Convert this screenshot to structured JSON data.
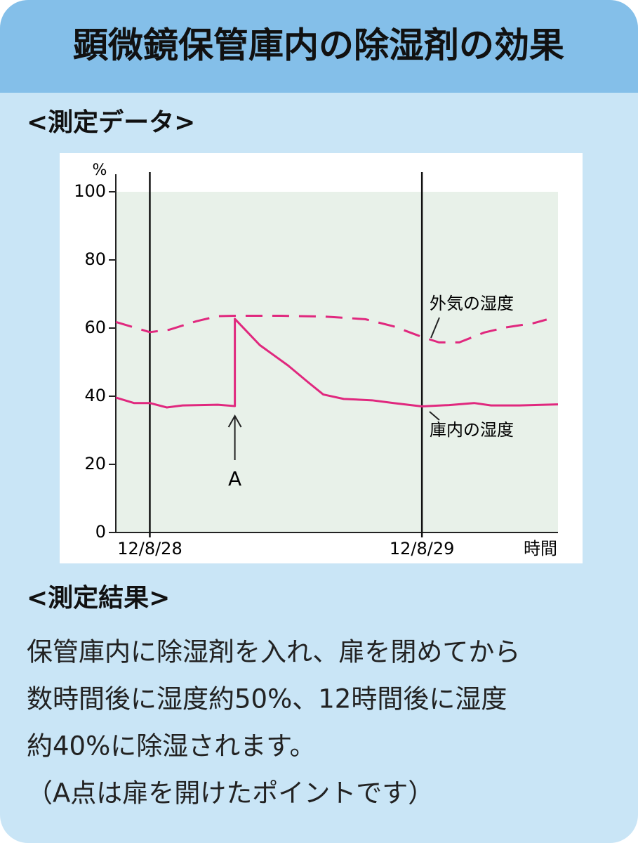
{
  "header": {
    "title": "顕微鏡保管庫内の除湿剤の効果"
  },
  "section_data": {
    "heading": "<測定データ>"
  },
  "chart_data": {
    "type": "line",
    "y_label": "%",
    "x_label": "時間",
    "xlim": [
      -3,
      36
    ],
    "xticks": [
      {
        "value": 0,
        "label": "12/8/28"
      },
      {
        "value": 24,
        "label": "12/8/29"
      }
    ],
    "ylim": [
      0,
      100
    ],
    "yticks": [
      0,
      20,
      40,
      60,
      80,
      100
    ],
    "series": [
      {
        "name": "庫内の湿度",
        "color": "#e0287e",
        "style": "solid",
        "x": [
          -3,
          -1.4,
          0,
          1.5,
          2.9,
          6,
          7.5,
          7.5,
          9.7,
          12.2,
          14,
          15.3,
          17.1,
          19.6,
          21.5,
          24,
          26.4,
          28.6,
          30.1,
          32.6,
          36
        ],
        "values": [
          39.6,
          38,
          38,
          36.7,
          37.3,
          37.5,
          37.1,
          62.7,
          55,
          49,
          44,
          40.5,
          39.2,
          38.8,
          38,
          37,
          37.4,
          38,
          37.3,
          37.3,
          37.6
        ]
      },
      {
        "name": "外気の湿度",
        "color": "#e0287e",
        "style": "dashed",
        "x": [
          -3,
          0,
          1.7,
          4.1,
          6,
          7.5,
          11.6,
          15.3,
          19,
          21.5,
          24,
          25.5,
          27.3,
          29.5,
          31.4,
          33.8,
          35
        ],
        "values": [
          61.8,
          58.8,
          59.5,
          62,
          63.5,
          63.6,
          63.6,
          63.4,
          62.6,
          60.5,
          57.4,
          55.8,
          55.8,
          58.7,
          60.2,
          61.4,
          62.5
        ]
      }
    ],
    "annotation": "A"
  },
  "section_result": {
    "heading": "<測定結果>",
    "lines": [
      "保管庫内に除湿剤を入れ、扉を閉めてから",
      "数時間後に湿度約50%、12時間後に湿度",
      "約40%に除湿されます。",
      "（A点は扉を開けたポイントです）"
    ]
  }
}
